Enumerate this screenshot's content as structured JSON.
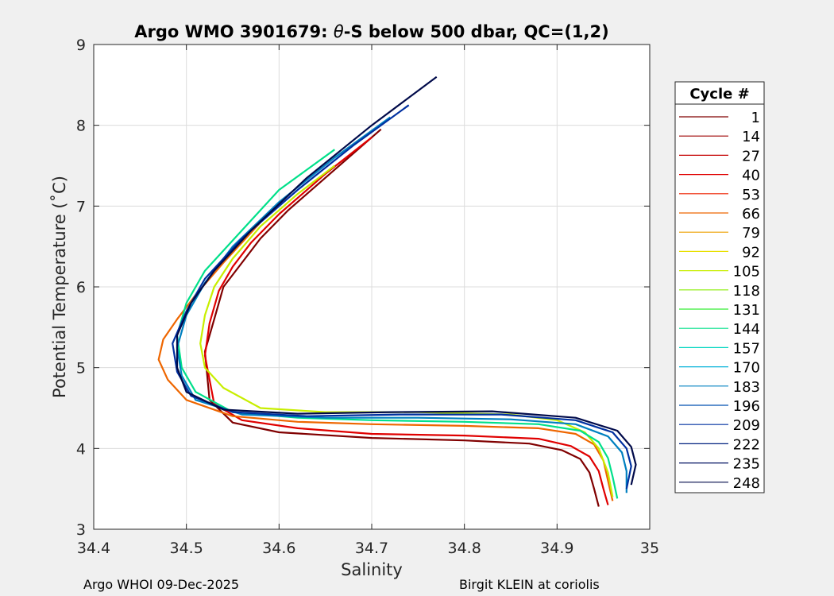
{
  "chart_data": {
    "type": "line",
    "title_prefix": "Argo WMO 3901679: ",
    "title_theta": "θ",
    "title_suffix": "-S below 500 dbar,  QC=(1,2)",
    "xlabel": "Salinity",
    "ylabel": "Potential Temperature (˚C)",
    "xlim": [
      34.4,
      35
    ],
    "ylim": [
      3,
      9
    ],
    "xticks": [
      "34.4",
      "34.5",
      "34.6",
      "34.7",
      "34.8",
      "34.9",
      "35"
    ],
    "yticks": [
      "3",
      "4",
      "5",
      "6",
      "7",
      "8",
      "9"
    ],
    "grid": true,
    "legend": {
      "title": "Cycle #",
      "placement": "right-outside",
      "entries": [
        {
          "label": "1",
          "color": "#800000"
        },
        {
          "label": "14",
          "color": "#9e0000"
        },
        {
          "label": "27",
          "color": "#c40000"
        },
        {
          "label": "40",
          "color": "#e00000"
        },
        {
          "label": "53",
          "color": "#ee2200"
        },
        {
          "label": "66",
          "color": "#ee6600"
        },
        {
          "label": "79",
          "color": "#eea000"
        },
        {
          "label": "92",
          "color": "#e8e000"
        },
        {
          "label": "105",
          "color": "#c8ee00"
        },
        {
          "label": "118",
          "color": "#88ee00"
        },
        {
          "label": "131",
          "color": "#33ee33"
        },
        {
          "label": "144",
          "color": "#00e08a"
        },
        {
          "label": "157",
          "color": "#00d6c0"
        },
        {
          "label": "170",
          "color": "#00b0d8"
        },
        {
          "label": "183",
          "color": "#0080c0"
        },
        {
          "label": "196",
          "color": "#0050b0"
        },
        {
          "label": "209",
          "color": "#0030a0"
        },
        {
          "label": "222",
          "color": "#002080"
        },
        {
          "label": "235",
          "color": "#001060"
        },
        {
          "label": "248",
          "color": "#000a4a"
        }
      ]
    },
    "series": [
      {
        "label": "1",
        "color": "#800000",
        "x": [
          34.71,
          34.66,
          34.61,
          34.58,
          34.56,
          34.54,
          34.53,
          34.52,
          34.525,
          34.55,
          34.6,
          34.7,
          34.8,
          34.87,
          34.905,
          34.925,
          34.935,
          34.94,
          34.945
        ],
        "y": [
          7.95,
          7.45,
          6.95,
          6.6,
          6.3,
          6.0,
          5.6,
          5.2,
          4.6,
          4.32,
          4.2,
          4.13,
          4.1,
          4.06,
          3.98,
          3.87,
          3.7,
          3.5,
          3.28
        ]
      },
      {
        "label": "40",
        "color": "#e00000",
        "x": [
          34.7,
          34.65,
          34.6,
          34.57,
          34.55,
          34.535,
          34.525,
          34.52,
          34.53,
          34.56,
          34.62,
          34.7,
          34.8,
          34.88,
          34.915,
          34.935,
          34.945,
          34.95,
          34.955
        ],
        "y": [
          7.85,
          7.4,
          6.9,
          6.55,
          6.25,
          5.95,
          5.55,
          5.15,
          4.55,
          4.35,
          4.25,
          4.18,
          4.16,
          4.12,
          4.03,
          3.9,
          3.72,
          3.5,
          3.3
        ]
      },
      {
        "label": "66",
        "color": "#ee6600",
        "x": [
          34.58,
          34.54,
          34.51,
          34.49,
          34.475,
          34.47,
          34.48,
          34.5,
          34.55,
          34.62,
          34.7,
          34.8,
          34.88,
          34.92,
          34.94,
          34.95,
          34.955,
          34.96
        ],
        "y": [
          6.8,
          6.3,
          5.9,
          5.6,
          5.35,
          5.1,
          4.85,
          4.6,
          4.4,
          4.33,
          4.3,
          4.28,
          4.25,
          4.18,
          4.05,
          3.85,
          3.6,
          3.35
        ]
      },
      {
        "label": "105",
        "color": "#c8ee00",
        "x": [
          34.66,
          34.62,
          34.58,
          34.55,
          34.53,
          34.52,
          34.515,
          34.52,
          34.54,
          34.58,
          34.65,
          34.75,
          34.85,
          34.9,
          34.93,
          34.945,
          34.955,
          34.96
        ],
        "y": [
          7.5,
          7.15,
          6.75,
          6.35,
          6.0,
          5.65,
          5.3,
          5.0,
          4.75,
          4.5,
          4.45,
          4.45,
          4.42,
          4.35,
          4.2,
          4.0,
          3.7,
          3.4
        ]
      },
      {
        "label": "144",
        "color": "#00e08a",
        "x": [
          34.66,
          34.6,
          34.56,
          34.52,
          34.5,
          34.49,
          34.495,
          34.51,
          34.55,
          34.62,
          34.7,
          34.8,
          34.88,
          34.925,
          34.945,
          34.955,
          34.96,
          34.965
        ],
        "y": [
          7.7,
          7.2,
          6.7,
          6.2,
          5.8,
          5.4,
          5.0,
          4.7,
          4.45,
          4.38,
          4.35,
          4.33,
          4.3,
          4.22,
          4.08,
          3.88,
          3.65,
          3.38
        ]
      },
      {
        "label": "183",
        "color": "#0080c0",
        "x": [
          34.72,
          34.66,
          34.6,
          34.55,
          34.52,
          34.5,
          34.49,
          34.495,
          34.51,
          34.56,
          34.65,
          34.75,
          34.85,
          34.92,
          34.955,
          34.97,
          34.975,
          34.975
        ],
        "y": [
          8.1,
          7.6,
          7.05,
          6.5,
          6.05,
          5.65,
          5.25,
          4.9,
          4.6,
          4.42,
          4.38,
          4.38,
          4.36,
          4.3,
          4.15,
          3.95,
          3.72,
          3.45
        ]
      },
      {
        "label": "209",
        "color": "#0030a0",
        "x": [
          34.74,
          34.68,
          34.62,
          34.56,
          34.52,
          34.5,
          34.485,
          34.49,
          34.505,
          34.55,
          34.63,
          34.73,
          34.84,
          34.92,
          34.96,
          34.975,
          34.98,
          34.975
        ],
        "y": [
          8.25,
          7.75,
          7.2,
          6.6,
          6.1,
          5.7,
          5.3,
          4.95,
          4.65,
          4.45,
          4.4,
          4.42,
          4.42,
          4.35,
          4.2,
          4.0,
          3.78,
          3.5
        ]
      },
      {
        "label": "248",
        "color": "#000a4a",
        "x": [
          34.77,
          34.7,
          34.63,
          34.57,
          34.53,
          34.505,
          34.49,
          34.49,
          34.5,
          34.54,
          34.62,
          34.72,
          34.83,
          34.92,
          34.965,
          34.98,
          34.985,
          34.98
        ],
        "y": [
          8.6,
          8.0,
          7.35,
          6.7,
          6.2,
          5.8,
          5.4,
          5.0,
          4.7,
          4.48,
          4.43,
          4.45,
          4.46,
          4.38,
          4.22,
          4.02,
          3.8,
          3.55
        ]
      }
    ],
    "footer_left": "Argo WHOI 09-Dec-2025",
    "footer_right": "Birgit KLEIN at coriolis"
  }
}
